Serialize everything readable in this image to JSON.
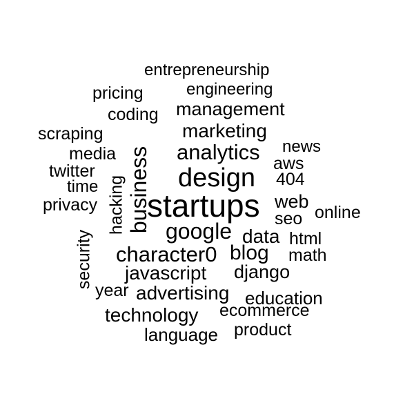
{
  "background_color": "#ffffff",
  "text_color": "#000000",
  "words": [
    {
      "text": "entrepreneurship"
    },
    {
      "text": "engineering"
    },
    {
      "text": "pricing"
    },
    {
      "text": "coding"
    },
    {
      "text": "management"
    },
    {
      "text": "scraping"
    },
    {
      "text": "marketing"
    },
    {
      "text": "media"
    },
    {
      "text": "analytics"
    },
    {
      "text": "news"
    },
    {
      "text": "twitter"
    },
    {
      "text": "aws"
    },
    {
      "text": "time"
    },
    {
      "text": "design"
    },
    {
      "text": "404"
    },
    {
      "text": "business"
    },
    {
      "text": "hacking"
    },
    {
      "text": "privacy"
    },
    {
      "text": "startups"
    },
    {
      "text": "web"
    },
    {
      "text": "online"
    },
    {
      "text": "seo"
    },
    {
      "text": "google"
    },
    {
      "text": "security"
    },
    {
      "text": "data"
    },
    {
      "text": "html"
    },
    {
      "text": "character0"
    },
    {
      "text": "blog"
    },
    {
      "text": "math"
    },
    {
      "text": "javascript"
    },
    {
      "text": "django"
    },
    {
      "text": "year"
    },
    {
      "text": "advertising"
    },
    {
      "text": "education"
    },
    {
      "text": "technology"
    },
    {
      "text": "ecommerce"
    },
    {
      "text": "language"
    },
    {
      "text": "product"
    }
  ]
}
